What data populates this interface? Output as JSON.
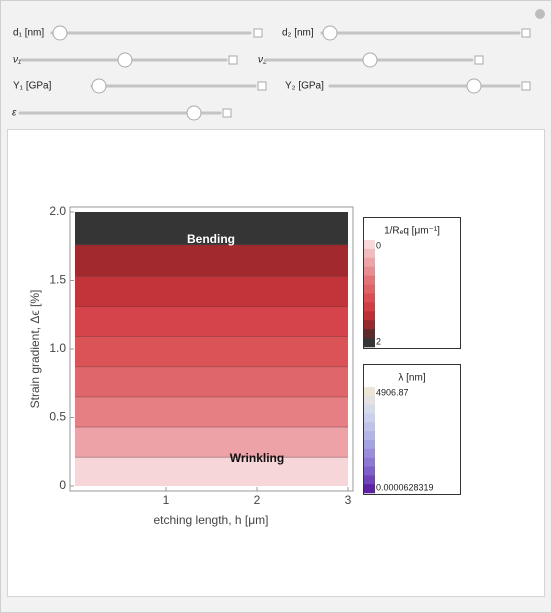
{
  "controls": {
    "sliders": [
      {
        "label": "d₁ [nm]"
      },
      {
        "label": "d₂ [nm]"
      },
      {
        "label": "ν₁"
      },
      {
        "label": "ν₂"
      },
      {
        "label": "Y₁ [GPa]"
      },
      {
        "label": "Y₂ [GPa]"
      },
      {
        "label": "ε"
      }
    ]
  },
  "chart_data": {
    "type": "contour",
    "xlabel": "etching length, h [μm]",
    "ylabel": "Strain gradient, Δϵ [%]",
    "xlim": [
      0,
      3
    ],
    "ylim": [
      0,
      2
    ],
    "xticks": [
      1,
      2,
      3
    ],
    "yticks": [
      0,
      0.5,
      {
        "value": 1,
        "label": "1.0"
      },
      1.5,
      {
        "value": 2,
        "label": "2.0"
      }
    ],
    "contour_levels": [
      0.21,
      0.43,
      0.65,
      0.87,
      1.09,
      1.31,
      1.53,
      1.76
    ],
    "band_colors": [
      "#f6d6d9",
      "#eca2a7",
      "#e57f84",
      "#df676b",
      "#da5357",
      "#d5444a",
      "#c3343a",
      "#a2292d",
      "#353535"
    ],
    "annotations": [
      "Bending",
      "Wrinkling"
    ],
    "legends": [
      {
        "title": "1/Rₑq [μm⁻¹]",
        "ticks": [
          0,
          2
        ],
        "colors": [
          "#f8d8da",
          "#f2bcbf",
          "#eda3a8",
          "#e88d92",
          "#e27479",
          "#de6266",
          "#d94f54",
          "#d13e44",
          "#bd3036",
          "#962a2e",
          "#5e2b2d",
          "#353535"
        ]
      },
      {
        "title": "λ [nm]",
        "ticks": [
          4906.87,
          6.28319e-05
        ],
        "colors": [
          "#ede6d6",
          "#e3e1e2",
          "#d6dbe9",
          "#cbd1ec",
          "#bfc3ea",
          "#b2b4e8",
          "#a5a2e3",
          "#998ddc",
          "#8d78d4",
          "#7f60c9",
          "#6f44b9",
          "#5c22a3"
        ]
      }
    ]
  }
}
